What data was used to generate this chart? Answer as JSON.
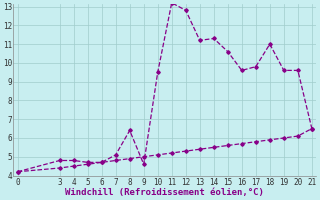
{
  "xlabel": "Windchill (Refroidissement éolien,°C)",
  "x_curve1": [
    0,
    3,
    4,
    5,
    6,
    7,
    8,
    9,
    10,
    11,
    12,
    13,
    14,
    15,
    16,
    17,
    18,
    19,
    20,
    21
  ],
  "y_curve1": [
    4.2,
    4.8,
    4.8,
    4.7,
    4.7,
    5.1,
    6.4,
    4.6,
    9.5,
    13.2,
    12.8,
    11.2,
    11.3,
    10.6,
    9.6,
    9.8,
    11.0,
    9.6,
    9.6,
    6.5
  ],
  "x_curve2": [
    0,
    3,
    4,
    5,
    6,
    7,
    8,
    9,
    10,
    11,
    12,
    13,
    14,
    15,
    16,
    17,
    18,
    19,
    20,
    21
  ],
  "y_curve2": [
    4.2,
    4.4,
    4.5,
    4.6,
    4.7,
    4.8,
    4.9,
    5.0,
    5.1,
    5.2,
    5.3,
    5.4,
    5.5,
    5.6,
    5.7,
    5.8,
    5.9,
    6.0,
    6.1,
    6.5
  ],
  "line_color": "#880088",
  "bg_color": "#c8eef0",
  "grid_color": "#a0cccc",
  "ylim": [
    4,
    13
  ],
  "xlim": [
    -0.3,
    21.3
  ],
  "xticks": [
    0,
    3,
    4,
    5,
    6,
    7,
    8,
    9,
    10,
    11,
    12,
    13,
    14,
    15,
    16,
    17,
    18,
    19,
    20,
    21
  ],
  "yticks": [
    4,
    5,
    6,
    7,
    8,
    9,
    10,
    11,
    12,
    13
  ],
  "tick_fontsize": 5.5,
  "xlabel_fontsize": 6.5
}
